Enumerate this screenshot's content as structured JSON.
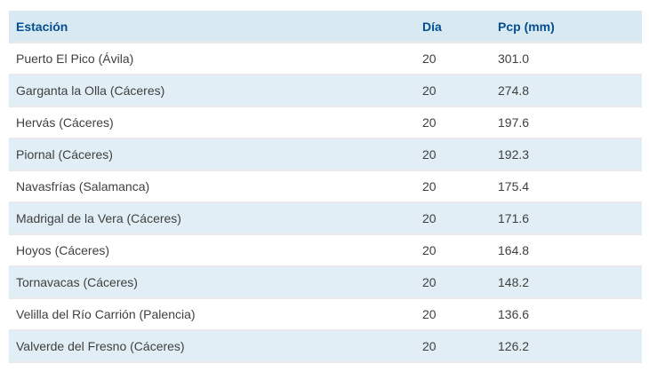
{
  "table": {
    "columns": [
      {
        "key": "estacion",
        "label": "Estación"
      },
      {
        "key": "dia",
        "label": "Día"
      },
      {
        "key": "pcp",
        "label": "Pcp (mm)"
      }
    ],
    "rows": [
      {
        "estacion": "Puerto El Pico (Ávila)",
        "dia": "20",
        "pcp": "301.0"
      },
      {
        "estacion": "Garganta la Olla (Cáceres)",
        "dia": "20",
        "pcp": "274.8"
      },
      {
        "estacion": "Hervás (Cáceres)",
        "dia": "20",
        "pcp": "197.6"
      },
      {
        "estacion": "Piornal (Cáceres)",
        "dia": "20",
        "pcp": "192.3"
      },
      {
        "estacion": "Navasfrías (Salamanca)",
        "dia": "20",
        "pcp": "175.4"
      },
      {
        "estacion": "Madrigal de la Vera (Cáceres)",
        "dia": "20",
        "pcp": "171.6"
      },
      {
        "estacion": "Hoyos (Cáceres)",
        "dia": "20",
        "pcp": "164.8"
      },
      {
        "estacion": "Tornavacas (Cáceres)",
        "dia": "20",
        "pcp": "148.2"
      },
      {
        "estacion": "Velilla del Río Carrión (Palencia)",
        "dia": "20",
        "pcp": "136.6"
      },
      {
        "estacion": "Valverde del Fresno (Cáceres)",
        "dia": "20",
        "pcp": "126.2"
      }
    ]
  },
  "colors": {
    "header_bg": "#d9e9f2",
    "header_text": "#044f8f",
    "row_alt_bg": "#e1eef5",
    "body_text": "#404040",
    "separator": "#e9e9e9",
    "page_bg": "#ffffff"
  },
  "chart_data": {
    "type": "table",
    "title": "",
    "columns": [
      "Estación",
      "Día",
      "Pcp (mm)"
    ],
    "rows": [
      [
        "Puerto El Pico (Ávila)",
        20,
        301.0
      ],
      [
        "Garganta la Olla (Cáceres)",
        20,
        274.8
      ],
      [
        "Hervás (Cáceres)",
        20,
        197.6
      ],
      [
        "Piornal (Cáceres)",
        20,
        192.3
      ],
      [
        "Navasfrías (Salamanca)",
        20,
        175.4
      ],
      [
        "Madrigal de la Vera (Cáceres)",
        20,
        171.6
      ],
      [
        "Hoyos (Cáceres)",
        20,
        164.8
      ],
      [
        "Tornavacas (Cáceres)",
        20,
        148.2
      ],
      [
        "Velilla del Río Carrión (Palencia)",
        20,
        136.6
      ],
      [
        "Valverde del Fresno (Cáceres)",
        20,
        126.2
      ]
    ],
    "layout_hints": {
      "header_style": "bold navy on light blue",
      "row_striping": "odd white, even light blue",
      "alignment": "all columns left-aligned"
    }
  }
}
